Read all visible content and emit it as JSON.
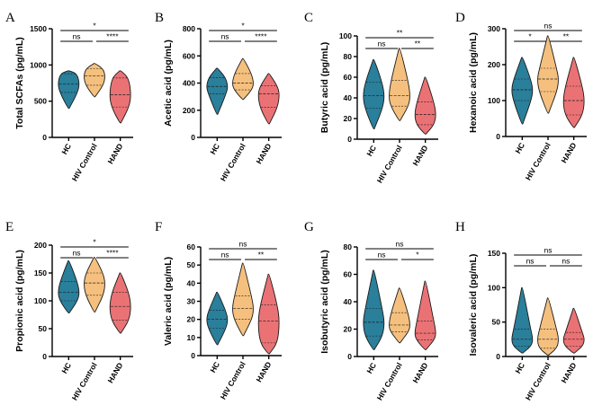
{
  "colors": {
    "HC": "#2a7f9b",
    "HIV Control": "#f5c07e",
    "HAND": "#ea7275",
    "line": "#1a1a1a"
  },
  "chart_data": [
    {
      "type": "violin",
      "panel": "A",
      "ylabel": "Total SCFAs (pg/mL)",
      "ylim": [
        0,
        1500
      ],
      "yticks": [
        0,
        500,
        1000,
        1500
      ],
      "categories": [
        "HC",
        "HIV Control",
        "HAND"
      ],
      "series": [
        {
          "name": "HC",
          "min": 400,
          "q1": 620,
          "median": 740,
          "q3": 880,
          "max": 920
        },
        {
          "name": "HIV Control",
          "min": 560,
          "q1": 720,
          "median": 850,
          "q3": 950,
          "max": 1020
        },
        {
          "name": "HAND",
          "min": 200,
          "q1": 420,
          "median": 590,
          "q3": 820,
          "max": 920
        }
      ],
      "comparisons": [
        {
          "from": 0,
          "to": 1,
          "label": "ns",
          "level": 0
        },
        {
          "from": 1,
          "to": 2,
          "label": "****",
          "level": 0
        },
        {
          "from": 0,
          "to": 2,
          "label": "*",
          "level": 1
        }
      ]
    },
    {
      "type": "violin",
      "panel": "B",
      "ylabel": "Acetic acid (pg/mL)",
      "ylim": [
        0,
        800
      ],
      "yticks": [
        0,
        200,
        400,
        600,
        800
      ],
      "categories": [
        "HC",
        "HIV Control",
        "HAND"
      ],
      "series": [
        {
          "name": "HC",
          "min": 170,
          "q1": 320,
          "median": 375,
          "q3": 440,
          "max": 510
        },
        {
          "name": "HIV Control",
          "min": 280,
          "q1": 350,
          "median": 400,
          "q3": 470,
          "max": 580
        },
        {
          "name": "HAND",
          "min": 100,
          "q1": 220,
          "median": 320,
          "q3": 380,
          "max": 470
        }
      ],
      "comparisons": [
        {
          "from": 0,
          "to": 1,
          "label": "ns",
          "level": 0
        },
        {
          "from": 1,
          "to": 2,
          "label": "****",
          "level": 0
        },
        {
          "from": 0,
          "to": 2,
          "label": "*",
          "level": 1
        }
      ]
    },
    {
      "type": "violin",
      "panel": "C",
      "ylabel": "Butyric acid (pg/mL)",
      "ylim": [
        0,
        100
      ],
      "yticks": [
        0,
        20,
        40,
        60,
        80,
        100
      ],
      "categories": [
        "HC",
        "HIV Control",
        "HAND"
      ],
      "series": [
        {
          "name": "HC",
          "min": 10,
          "q1": 30,
          "median": 42,
          "q3": 55,
          "max": 77
        },
        {
          "name": "HIV Control",
          "min": 18,
          "q1": 32,
          "median": 42,
          "q3": 57,
          "max": 88
        },
        {
          "name": "HAND",
          "min": 5,
          "q1": 14,
          "median": 24,
          "q3": 36,
          "max": 60
        }
      ],
      "comparisons": [
        {
          "from": 0,
          "to": 1,
          "label": "ns",
          "level": 0
        },
        {
          "from": 1,
          "to": 2,
          "label": "**",
          "level": 0
        },
        {
          "from": 0,
          "to": 2,
          "label": "**",
          "level": 1
        }
      ]
    },
    {
      "type": "violin",
      "panel": "D",
      "ylabel": "Hexanoic acid (pg/mL)",
      "ylim": [
        0,
        300
      ],
      "yticks": [
        0,
        100,
        200,
        300
      ],
      "categories": [
        "HC",
        "HIV Control",
        "HAND"
      ],
      "series": [
        {
          "name": "HC",
          "min": 35,
          "q1": 100,
          "median": 130,
          "q3": 160,
          "max": 220
        },
        {
          "name": "HIV Control",
          "min": 65,
          "q1": 125,
          "median": 160,
          "q3": 190,
          "max": 280
        },
        {
          "name": "HAND",
          "min": 25,
          "q1": 60,
          "median": 100,
          "q3": 140,
          "max": 220
        }
      ],
      "comparisons": [
        {
          "from": 0,
          "to": 1,
          "label": "*",
          "level": 0
        },
        {
          "from": 1,
          "to": 2,
          "label": "**",
          "level": 0
        },
        {
          "from": 0,
          "to": 2,
          "label": "ns",
          "level": 1
        }
      ]
    },
    {
      "type": "violin",
      "panel": "E",
      "ylabel": "Propionic acid (pg/mL)",
      "ylim": [
        0,
        200
      ],
      "yticks": [
        0,
        50,
        100,
        150,
        200
      ],
      "categories": [
        "HC",
        "HIV Control",
        "HAND"
      ],
      "series": [
        {
          "name": "HC",
          "min": 78,
          "q1": 100,
          "median": 115,
          "q3": 135,
          "max": 172
        },
        {
          "name": "HIV Control",
          "min": 80,
          "q1": 110,
          "median": 132,
          "q3": 150,
          "max": 178
        },
        {
          "name": "HAND",
          "min": 42,
          "q1": 65,
          "median": 90,
          "q3": 115,
          "max": 150
        }
      ],
      "comparisons": [
        {
          "from": 0,
          "to": 1,
          "label": "ns",
          "level": 0
        },
        {
          "from": 1,
          "to": 2,
          "label": "****",
          "level": 0
        },
        {
          "from": 0,
          "to": 2,
          "label": "*",
          "level": 1
        }
      ]
    },
    {
      "type": "violin",
      "panel": "F",
      "ylabel": "Valeric acid (pg/mL)",
      "ylim": [
        0,
        60
      ],
      "yticks": [
        0,
        10,
        20,
        30,
        40,
        50,
        60
      ],
      "categories": [
        "HC",
        "HIV Control",
        "HAND"
      ],
      "series": [
        {
          "name": "HC",
          "min": 6,
          "q1": 15,
          "median": 20,
          "q3": 25,
          "max": 35
        },
        {
          "name": "HIV Control",
          "min": 11,
          "q1": 20,
          "median": 26,
          "q3": 33,
          "max": 51
        },
        {
          "name": "HAND",
          "min": 1,
          "q1": 7,
          "median": 19,
          "q3": 28,
          "max": 45
        }
      ],
      "comparisons": [
        {
          "from": 0,
          "to": 1,
          "label": "ns",
          "level": 0
        },
        {
          "from": 1,
          "to": 2,
          "label": "**",
          "level": 0
        },
        {
          "from": 0,
          "to": 2,
          "label": "ns",
          "level": 1
        }
      ]
    },
    {
      "type": "violin",
      "panel": "G",
      "ylabel": "Isobutyric acid (pg/mL)",
      "ylim": [
        0,
        80
      ],
      "yticks": [
        0,
        20,
        40,
        60,
        80
      ],
      "categories": [
        "HC",
        "HIV Control",
        "HAND"
      ],
      "series": [
        {
          "name": "HC",
          "min": 5,
          "q1": 15,
          "median": 25,
          "q3": 35,
          "max": 63
        },
        {
          "name": "HIV Control",
          "min": 10,
          "q1": 18,
          "median": 23,
          "q3": 32,
          "max": 50
        },
        {
          "name": "HAND",
          "min": 5,
          "q1": 12,
          "median": 17,
          "q3": 26,
          "max": 55
        }
      ],
      "comparisons": [
        {
          "from": 0,
          "to": 1,
          "label": "ns",
          "level": 0
        },
        {
          "from": 1,
          "to": 2,
          "label": "*",
          "level": 0
        },
        {
          "from": 0,
          "to": 2,
          "label": "ns",
          "level": 1
        }
      ]
    },
    {
      "type": "violin",
      "panel": "H",
      "ylabel": "Isovaleric acid (pg/mL)",
      "ylim": [
        0,
        150
      ],
      "yticks": [
        0,
        50,
        100,
        150
      ],
      "categories": [
        "HC",
        "HIV Control",
        "HAND"
      ],
      "series": [
        {
          "name": "HC",
          "min": 5,
          "q1": 15,
          "median": 25,
          "q3": 40,
          "max": 100
        },
        {
          "name": "HIV Control",
          "min": 2,
          "q1": 12,
          "median": 25,
          "q3": 40,
          "max": 85
        },
        {
          "name": "HAND",
          "min": 5,
          "q1": 15,
          "median": 25,
          "q3": 35,
          "max": 70
        }
      ],
      "comparisons": [
        {
          "from": 0,
          "to": 1,
          "label": "ns",
          "level": 0
        },
        {
          "from": 1,
          "to": 2,
          "label": "ns",
          "level": 0
        },
        {
          "from": 0,
          "to": 2,
          "label": "ns",
          "level": 1
        }
      ]
    }
  ]
}
